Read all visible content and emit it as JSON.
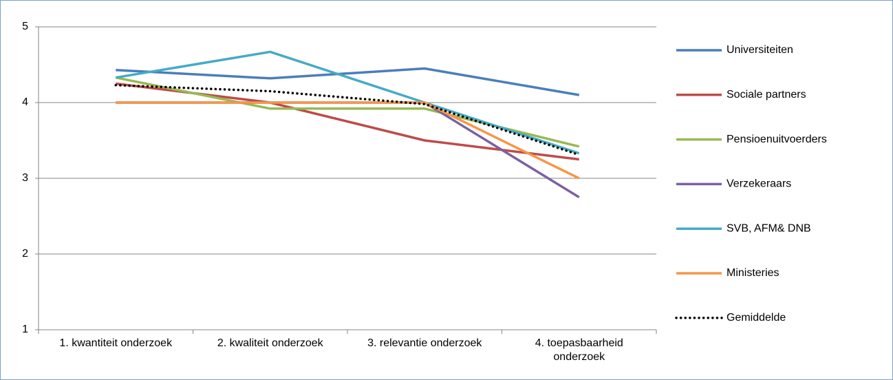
{
  "chart_data": {
    "type": "line",
    "categories": [
      "1. kwantiteit onderzoek",
      "2. kwaliteit onderzoek",
      "3. relevantie onderzoek",
      "4. toepasbaarheid onderzoek"
    ],
    "series": [
      {
        "name": "Universiteiten",
        "color": "#4a7ebb",
        "values": [
          4.43,
          4.32,
          4.45,
          4.1
        ]
      },
      {
        "name": "Sociale partners",
        "color": "#be4b48",
        "values": [
          4.25,
          4.0,
          3.5,
          3.25
        ]
      },
      {
        "name": "Pensioenuitvoerders",
        "color": "#98b954",
        "values": [
          4.33,
          3.92,
          3.92,
          3.42
        ]
      },
      {
        "name": "Verzekeraars",
        "color": "#7d60a0",
        "values": [
          4.0,
          4.0,
          4.0,
          2.75
        ]
      },
      {
        "name": "SVB, AFM& DNB",
        "color": "#46aac5",
        "values": [
          4.33,
          4.67,
          4.0,
          3.33
        ]
      },
      {
        "name": "Ministeries",
        "color": "#f79646",
        "values": [
          4.0,
          4.0,
          4.0,
          3.0
        ]
      },
      {
        "name": "Gemiddelde",
        "color": "#000000",
        "dotted": true,
        "values": [
          4.23,
          4.15,
          3.98,
          3.31
        ]
      }
    ],
    "ylim": [
      1,
      5
    ],
    "yticks": [
      1,
      2,
      3,
      4,
      5
    ],
    "grid": true,
    "legend": "right"
  }
}
